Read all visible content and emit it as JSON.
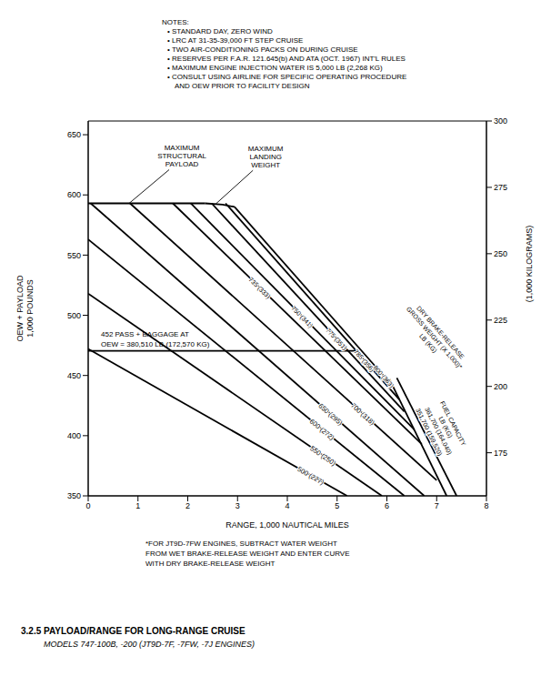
{
  "chart_data": {
    "type": "line",
    "title": "3.2.5 PAYLOAD/RANGE FOR LONG-RANGE CRUISE",
    "subtitle": "MODELS 747-100B, -200 (JT9D-7F, -7FW, -7J ENGINES)",
    "notes_title": "NOTES:",
    "notes": [
      "• STANDARD DAY, ZERO WIND",
      "• LRC AT 31-35-39,000 FT STEP CRUISE",
      "• TWO AIR-CONDITIONING PACKS ON DURING CRUISE",
      "• RESERVES PER F.A.R. 121.645(b) AND ATA (OCT. 1967) INT'L RULES",
      "• MAXIMUM ENGINE INJECTION WATER IS 5,000 LB (2,268 KG)",
      "• CONSULT USING AIRLINE FOR SPECIFIC OPERATING PROCEDURE\nAND OEW PRIOR TO FACILITY DESIGN"
    ],
    "footnote": "*FOR JT9D-7FW ENGINES, SUBTRACT WATER WEIGHT\nFROM WET BRAKE-RELEASE WEIGHT AND ENTER CURVE\nWITH DRY BRAKE-RELEASE WEIGHT",
    "x_label": "RANGE, 1,000 NAUTICAL MILES",
    "y_label": "OEW + PAYLOAD\n1,000 POUNDS",
    "y2_label": "(1,000 KILOGRAMS)",
    "xlim": [
      0,
      8
    ],
    "xticks": [
      0,
      1,
      2,
      3,
      4,
      5,
      6,
      7,
      8
    ],
    "ylim": [
      350,
      661.39
    ],
    "yticks": [
      350,
      400,
      450,
      500,
      550,
      600,
      650
    ],
    "y2lim": [
      158.76,
      300
    ],
    "y2ticks": [
      175,
      200,
      225,
      250,
      275,
      300
    ],
    "grid": false,
    "series": [
      {
        "name": "MAXIMUM\nSTRUCTURAL\nPAYLOAD",
        "color": "#000000",
        "x": [
          0,
          2.35
        ],
        "values": [
          593,
          593
        ]
      },
      {
        "name": "MAXIMUM\nLANDING\nWEIGHT",
        "color": "#000000",
        "x": [
          2.35,
          2.7,
          2.94
        ],
        "values": [
          593,
          592,
          590
        ]
      },
      {
        "name": "452 PASS + BAGGAGE AT\nOEW = 380,510 LB (172,570 KG)",
        "color": "#000000",
        "x": [
          0,
          5.4
        ],
        "values": [
          470.5,
          470.5
        ]
      },
      {
        "name": "500 (227)",
        "color": "#000000",
        "x": [
          0,
          5.2
        ],
        "values": [
          472,
          350
        ]
      },
      {
        "name": "550 (250)",
        "color": "#000000",
        "x": [
          0,
          5.9
        ],
        "values": [
          518,
          350
        ]
      },
      {
        "name": "600 (272)",
        "color": "#000000",
        "x": [
          0,
          6.35
        ],
        "values": [
          563,
          350
        ]
      },
      {
        "name": "650 (295)",
        "color": "#000000",
        "x": [
          0.05,
          6.75
        ],
        "values": [
          593,
          350
        ]
      },
      {
        "name": "700 (318)",
        "color": "#000000",
        "x": [
          0.84,
          7.0
        ],
        "values": [
          593,
          363
        ]
      },
      {
        "name": "735 (333)",
        "color": "#000000",
        "x": [
          1.7,
          6.7
        ],
        "values": [
          593,
          393
        ]
      },
      {
        "name": "750 (341)",
        "color": "#000000",
        "x": [
          2.06,
          6.55
        ],
        "values": [
          593,
          405
        ]
      },
      {
        "name": "775 (351)",
        "color": "#000000",
        "x": [
          2.48,
          6.35
        ],
        "values": [
          593,
          420
        ]
      },
      {
        "name": "785 (356)",
        "color": "#000000",
        "x": [
          2.76,
          6.25
        ],
        "values": [
          593,
          430
        ]
      },
      {
        "name": "800 (363)",
        "color": "#000000",
        "x": [
          2.94,
          6.1
        ],
        "values": [
          590,
          442
        ]
      },
      {
        "name": "351,700 (159,520)",
        "color": "#000000",
        "x": [
          6.05,
          7.2
        ],
        "values": [
          447,
          350
        ]
      },
      {
        "name": "361,700 (164,040)",
        "color": "#000000",
        "x": [
          6.2,
          7.4
        ],
        "values": [
          448,
          350
        ]
      }
    ],
    "annotations": [
      "DRY BRAKE-RELEASE\nGROSS WEIGHT (X 1,000)*\nLB (KG)",
      "FUEL CAPACITY\nLB (KG)"
    ]
  }
}
